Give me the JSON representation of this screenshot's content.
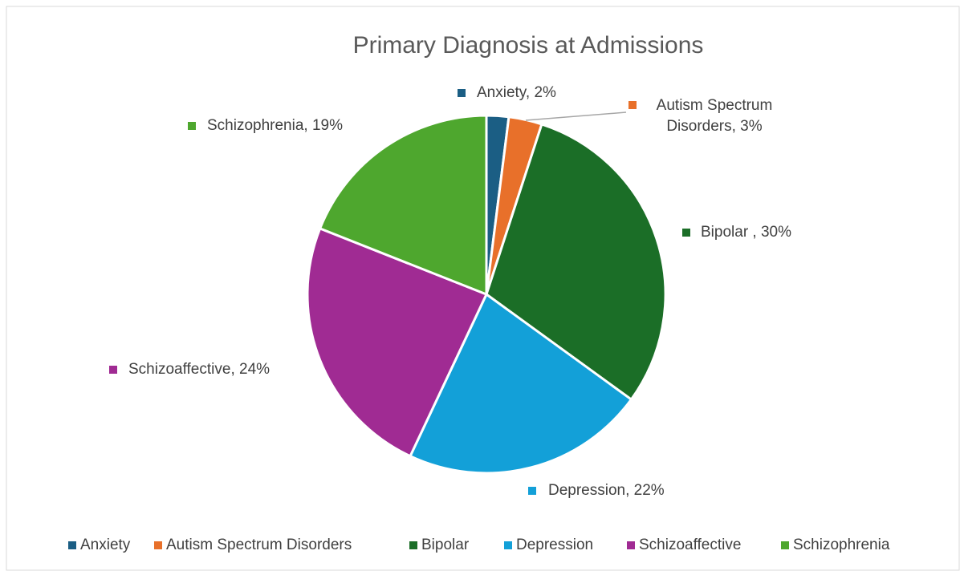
{
  "chart_data": {
    "type": "pie",
    "title": "Primary Diagnosis at Admissions",
    "categories": [
      "Anxiety",
      "Autism Spectrum Disorders",
      "Bipolar",
      "Depression",
      "Schizoaffective",
      "Schizophrenia"
    ],
    "values": [
      2,
      3,
      30,
      22,
      24,
      19
    ],
    "value_labels": [
      "Anxiety, 2%",
      "Autism Spectrum Disorders, 3%",
      "Bipolar , 30%",
      "Depression, 22%",
      "Schizoaffective, 24%",
      "Schizophrenia, 19%"
    ],
    "colors": [
      "#1b5e84",
      "#e8702a",
      "#1b6e27",
      "#13a0d8",
      "#a02b93",
      "#4ea72e"
    ],
    "legend": "bottom"
  }
}
